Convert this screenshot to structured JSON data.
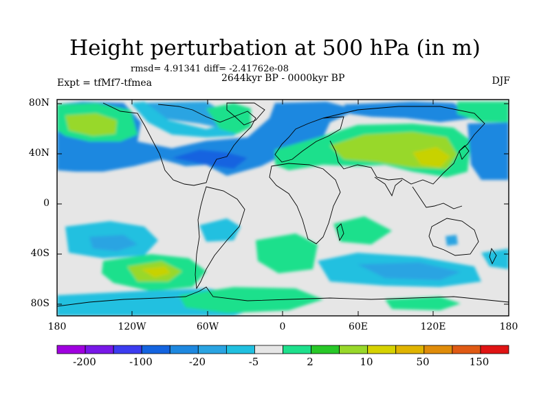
{
  "title": "Height perturbation at 500 hPa (in m)",
  "stats": "rmsd= 4.91341 diff= -2.41762e-08",
  "period": "2644kyr BP - 0000kyr BP",
  "experiment": "Expt = tfMf7-tfmea",
  "season": "DJF",
  "map": {
    "lat_ticks": [
      "80N",
      "40N",
      "0",
      "40S",
      "80S"
    ],
    "lon_ticks": [
      "180",
      "120W",
      "60W",
      "0",
      "60E",
      "120E",
      "180"
    ],
    "ocean_color": "#e6e6e6",
    "coastline_color": "#000000"
  },
  "colorbar": {
    "colors": [
      "#a000e0",
      "#7818e8",
      "#3c3cf0",
      "#1464e0",
      "#1e88e0",
      "#2aa4e2",
      "#20c0e0",
      "#e6e6e6",
      "#1ee08c",
      "#28c828",
      "#98d82a",
      "#d6d200",
      "#e0b400",
      "#e08c0a",
      "#e05a14",
      "#e01414"
    ],
    "labels": [
      "-200",
      "-100",
      "-20",
      "-5",
      "2",
      "10",
      "50",
      "150"
    ]
  },
  "legend_colors": {
    "strong_negative": "#1e78d8",
    "mid_negative": "#2aa0e6",
    "weak_negative": "#28c8e6",
    "neutral": "#e6e6e6",
    "weak_positive": "#1ee08c",
    "mid_positive": "#4cd228",
    "strong_positive": "#b4dc1e",
    "peak_positive": "#c8d200"
  }
}
